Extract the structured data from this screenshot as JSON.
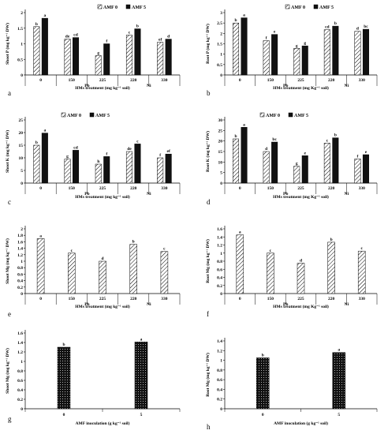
{
  "colors": {
    "amf0_fill": "#ffffff",
    "amf5_fill": "#111111",
    "axis": "#000000"
  },
  "fills": {
    "amf0": "hatched",
    "amf5": "solid-black",
    "single": "dotted-black"
  },
  "chart_data": [
    {
      "panel": "a",
      "type": "bar",
      "legend": [
        "AMF 0",
        "AMF 5"
      ],
      "ylabel": "Shoot P (mg kg⁻¹ DW)",
      "xlabel": "HMs treatment (mg kg⁻¹ soil)",
      "ylim": [
        0,
        2
      ],
      "yticks": [
        "0",
        "0.5",
        "1",
        "1.5",
        "2"
      ],
      "categories": [
        "0",
        "150",
        "225",
        "220",
        "330"
      ],
      "groups": [
        "Pb",
        "Ni"
      ],
      "series": [
        {
          "name": "AMF 0",
          "values": [
            1.55,
            1.15,
            0.62,
            1.28,
            1.05
          ],
          "letters": [
            "b",
            "de",
            "g",
            "c",
            "ef"
          ]
        },
        {
          "name": "AMF 5",
          "values": [
            1.82,
            1.2,
            1.0,
            1.48,
            1.15
          ],
          "letters": [
            "a",
            "cd",
            "f",
            "b",
            "d"
          ]
        }
      ]
    },
    {
      "panel": "b",
      "type": "bar",
      "legend": [
        "AMF 0",
        "AMF 5"
      ],
      "ylabel": "Root P (mg kg⁻¹ DW)",
      "xlabel": "HMs treatment (mg Kg⁻¹ soil)",
      "ylim": [
        0,
        3
      ],
      "yticks": [
        "0",
        "0.5",
        "1",
        "1.5",
        "2",
        "2.5",
        "3"
      ],
      "categories": [
        "0",
        "150",
        "225",
        "220",
        "330"
      ],
      "groups": [
        "Pb",
        "Ni"
      ],
      "series": [
        {
          "name": "AMF 0",
          "values": [
            2.5,
            1.65,
            1.28,
            2.18,
            2.1
          ],
          "letters": [
            "b",
            "f",
            "g",
            "cd",
            "d"
          ]
        },
        {
          "name": "AMF 5",
          "values": [
            2.75,
            1.95,
            1.4,
            2.35,
            2.2
          ],
          "letters": [
            "a",
            "e",
            "g",
            "b",
            "bc"
          ]
        }
      ]
    },
    {
      "panel": "c",
      "type": "bar",
      "legend": [
        "AMF 0",
        "AMF 5"
      ],
      "ylabel": "Shoot K (mg kg⁻¹ DW)",
      "xlabel": "HMs treatment (mg kg⁻¹ soil)",
      "ylim": [
        0,
        25
      ],
      "yticks": [
        "0",
        "5",
        "10",
        "15",
        "20",
        "25"
      ],
      "categories": [
        "0",
        "150",
        "225",
        "220",
        "330"
      ],
      "groups": [
        "Pb",
        "Ni"
      ],
      "series": [
        {
          "name": "AMF 0",
          "values": [
            15.0,
            9.5,
            7.5,
            12.5,
            10.0
          ],
          "letters": [
            "b",
            "g",
            "h",
            "de",
            "f"
          ]
        },
        {
          "name": "AMF 5",
          "values": [
            19.8,
            13.0,
            10.5,
            15.5,
            11.5
          ],
          "letters": [
            "a",
            "cd",
            "f",
            "c",
            "ef"
          ]
        }
      ]
    },
    {
      "panel": "d",
      "type": "bar",
      "legend": [
        "AMF 0",
        "AMF 5"
      ],
      "ylabel": "Root K (mg kg⁻¹ DW)",
      "xlabel": "HMs treatment (mg Kg⁻¹ soil)",
      "ylim": [
        0,
        30
      ],
      "yticks": [
        "0",
        "5",
        "10",
        "15",
        "20",
        "25",
        "30"
      ],
      "categories": [
        "0",
        "150",
        "225",
        "220",
        "330"
      ],
      "groups": [
        "Pb",
        "Ni"
      ],
      "series": [
        {
          "name": "AMF 0",
          "values": [
            21.0,
            15.0,
            8.0,
            19.0,
            11.5
          ],
          "letters": [
            "b",
            "d",
            "g",
            "c",
            "f"
          ]
        },
        {
          "name": "AMF 5",
          "values": [
            26.5,
            19.5,
            13.0,
            21.5,
            13.5
          ],
          "letters": [
            "a",
            "bc",
            "e",
            "b",
            "e"
          ]
        }
      ]
    },
    {
      "panel": "e",
      "type": "bar",
      "ylabel": "Shoot Mg (mg kg⁻¹ DW)",
      "xlabel": "HMs treatment (mg kg⁻¹ soil)",
      "ylim": [
        0,
        2
      ],
      "yticks": [
        "0",
        "0.2",
        "0.4",
        "0.6",
        "0.8",
        "1",
        "1.2",
        "1.4",
        "1.6",
        "1.8",
        "2"
      ],
      "categories": [
        "0",
        "150",
        "225",
        "220",
        "330"
      ],
      "groups": [
        "Pb",
        "Ni"
      ],
      "series": [
        {
          "values": [
            1.7,
            1.25,
            1.0,
            1.52,
            1.3
          ],
          "letters": [
            "a",
            "c",
            "d",
            "b",
            "c"
          ]
        }
      ]
    },
    {
      "panel": "f",
      "type": "bar",
      "ylabel": "Root Mg (mg kg⁻¹ DW)",
      "xlabel": "HMs treatment (mg Kg⁻¹ soil)",
      "ylim": [
        0,
        1.6
      ],
      "yticks": [
        "0",
        "0.2",
        "0.4",
        "0.6",
        "0.8",
        "1",
        "1.2",
        "1.4",
        "1.6"
      ],
      "categories": [
        "0",
        "150",
        "225",
        "220",
        "330"
      ],
      "groups": [
        "Pb",
        "Ni"
      ],
      "series": [
        {
          "values": [
            1.45,
            1.0,
            0.75,
            1.27,
            1.05
          ],
          "letters": [
            "a",
            "c",
            "d",
            "b",
            "c"
          ]
        }
      ]
    },
    {
      "panel": "g",
      "type": "bar",
      "ylabel": "Shoot Mg (mg kg⁻¹ DW)",
      "xlabel": "AMF inoculation (g kg⁻¹ soil)",
      "ylim": [
        0,
        1.6
      ],
      "yticks": [
        "0",
        "0.2",
        "0.4",
        "0.6",
        "0.8",
        "1",
        "1.2",
        "1.4",
        "1.6"
      ],
      "categories": [
        "0",
        "5"
      ],
      "series": [
        {
          "values": [
            1.3,
            1.41
          ],
          "letters": [
            "b",
            "a"
          ]
        }
      ]
    },
    {
      "panel": "h",
      "type": "bar",
      "ylabel": "Root Mg (mg kg⁻¹ DW)",
      "xlabel": "AMF inoculation (g kg⁻¹ soil)",
      "ylim": [
        0,
        1.4
      ],
      "yticks": [
        "0",
        "0.2",
        "0.4",
        "0.6",
        "0.8",
        "1",
        "1.2",
        "1.4"
      ],
      "categories": [
        "0",
        "5"
      ],
      "series": [
        {
          "values": [
            1.05,
            1.16
          ],
          "letters": [
            "b",
            "a"
          ]
        }
      ]
    }
  ]
}
